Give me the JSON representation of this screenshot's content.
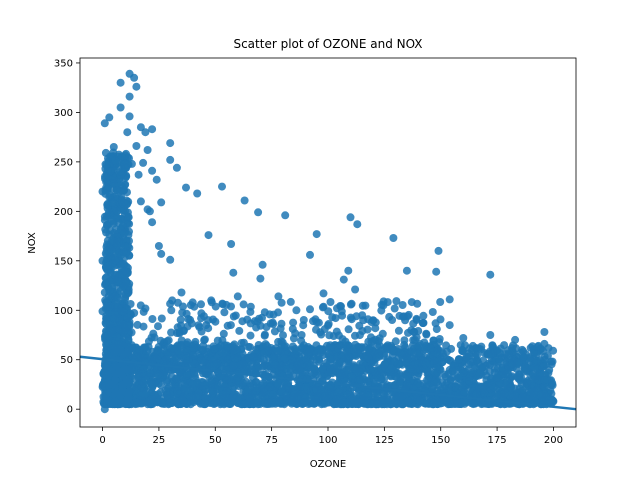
{
  "chart_data": {
    "type": "scatter",
    "title": "Scatter plot of OZONE and NOX",
    "xlabel": "OZONE",
    "ylabel": "NOX",
    "xlim": [
      -10,
      210
    ],
    "ylim": [
      -18,
      355
    ],
    "xticks": [
      0,
      25,
      50,
      75,
      100,
      125,
      150,
      175,
      200
    ],
    "yticks": [
      0,
      50,
      100,
      150,
      200,
      250,
      300,
      350
    ],
    "grid": false,
    "point_color": "#1f77b4",
    "regression_line": {
      "x": [
        -10,
        210
      ],
      "y": [
        53,
        0
      ]
    },
    "dense_regions": [
      {
        "description": "main cloud",
        "x_range": [
          0,
          200
        ],
        "y_range": [
          5,
          65
        ],
        "approx_points": 2600
      },
      {
        "description": "low-ozone spike",
        "x_range": [
          1,
          12
        ],
        "y_range": [
          5,
          260
        ],
        "approx_points": 900
      },
      {
        "description": "mid band",
        "x_range": [
          5,
          150
        ],
        "y_range": [
          40,
          110
        ],
        "approx_points": 500
      }
    ],
    "outlier_points": [
      {
        "x": 1,
        "y": 289
      },
      {
        "x": 3,
        "y": 295
      },
      {
        "x": 8,
        "y": 330
      },
      {
        "x": 12,
        "y": 339
      },
      {
        "x": 14,
        "y": 335
      },
      {
        "x": 15,
        "y": 326
      },
      {
        "x": 8,
        "y": 305
      },
      {
        "x": 12,
        "y": 296
      },
      {
        "x": 11,
        "y": 280
      },
      {
        "x": 19,
        "y": 280
      },
      {
        "x": 22,
        "y": 283
      },
      {
        "x": 17,
        "y": 285
      },
      {
        "x": 30,
        "y": 269
      },
      {
        "x": 30,
        "y": 252
      },
      {
        "x": 33,
        "y": 244
      },
      {
        "x": 20,
        "y": 262
      },
      {
        "x": 18,
        "y": 249
      },
      {
        "x": 22,
        "y": 241
      },
      {
        "x": 24,
        "y": 232
      },
      {
        "x": 37,
        "y": 224
      },
      {
        "x": 42,
        "y": 218
      },
      {
        "x": 53,
        "y": 225
      },
      {
        "x": 63,
        "y": 211
      },
      {
        "x": 69,
        "y": 199
      },
      {
        "x": 81,
        "y": 196
      },
      {
        "x": 110,
        "y": 194
      },
      {
        "x": 113,
        "y": 187
      },
      {
        "x": 95,
        "y": 177
      },
      {
        "x": 129,
        "y": 173
      },
      {
        "x": 47,
        "y": 176
      },
      {
        "x": 57,
        "y": 167
      },
      {
        "x": 149,
        "y": 160
      },
      {
        "x": 92,
        "y": 156
      },
      {
        "x": 71,
        "y": 146
      },
      {
        "x": 70,
        "y": 132
      },
      {
        "x": 58,
        "y": 138
      },
      {
        "x": 109,
        "y": 140
      },
      {
        "x": 107,
        "y": 131
      },
      {
        "x": 135,
        "y": 140
      },
      {
        "x": 148,
        "y": 139
      },
      {
        "x": 172,
        "y": 136
      },
      {
        "x": 30,
        "y": 151
      },
      {
        "x": 26,
        "y": 209
      },
      {
        "x": 21,
        "y": 200
      },
      {
        "x": 154,
        "y": 111
      },
      {
        "x": 112,
        "y": 121
      },
      {
        "x": 98,
        "y": 117
      },
      {
        "x": 60,
        "y": 114
      },
      {
        "x": 78,
        "y": 114
      },
      {
        "x": 104,
        "y": 102
      },
      {
        "x": 92,
        "y": 101
      },
      {
        "x": 86,
        "y": 100
      },
      {
        "x": 154,
        "y": 85
      },
      {
        "x": 196,
        "y": 78
      },
      {
        "x": 172,
        "y": 75
      },
      {
        "x": 183,
        "y": 70
      },
      {
        "x": 193,
        "y": 63
      },
      {
        "x": 196,
        "y": 66
      },
      {
        "x": 20,
        "y": 202
      },
      {
        "x": 17,
        "y": 210
      },
      {
        "x": 25,
        "y": 165
      },
      {
        "x": 26,
        "y": 157
      },
      {
        "x": 22,
        "y": 189
      },
      {
        "x": 15,
        "y": 266
      },
      {
        "x": 13,
        "y": 248
      },
      {
        "x": 16,
        "y": 237
      },
      {
        "x": 12,
        "y": 316
      },
      {
        "x": 5,
        "y": 265
      },
      {
        "x": 0,
        "y": 220
      },
      {
        "x": 0,
        "y": 150
      },
      {
        "x": 0,
        "y": 99
      },
      {
        "x": 1,
        "y": 0
      },
      {
        "x": 45,
        "y": 94
      },
      {
        "x": 40,
        "y": 108
      },
      {
        "x": 35,
        "y": 118
      },
      {
        "x": 120,
        "y": 90
      },
      {
        "x": 140,
        "y": 79
      },
      {
        "x": 160,
        "y": 72
      },
      {
        "x": 180,
        "y": 56
      },
      {
        "x": 185,
        "y": 8
      }
    ]
  }
}
